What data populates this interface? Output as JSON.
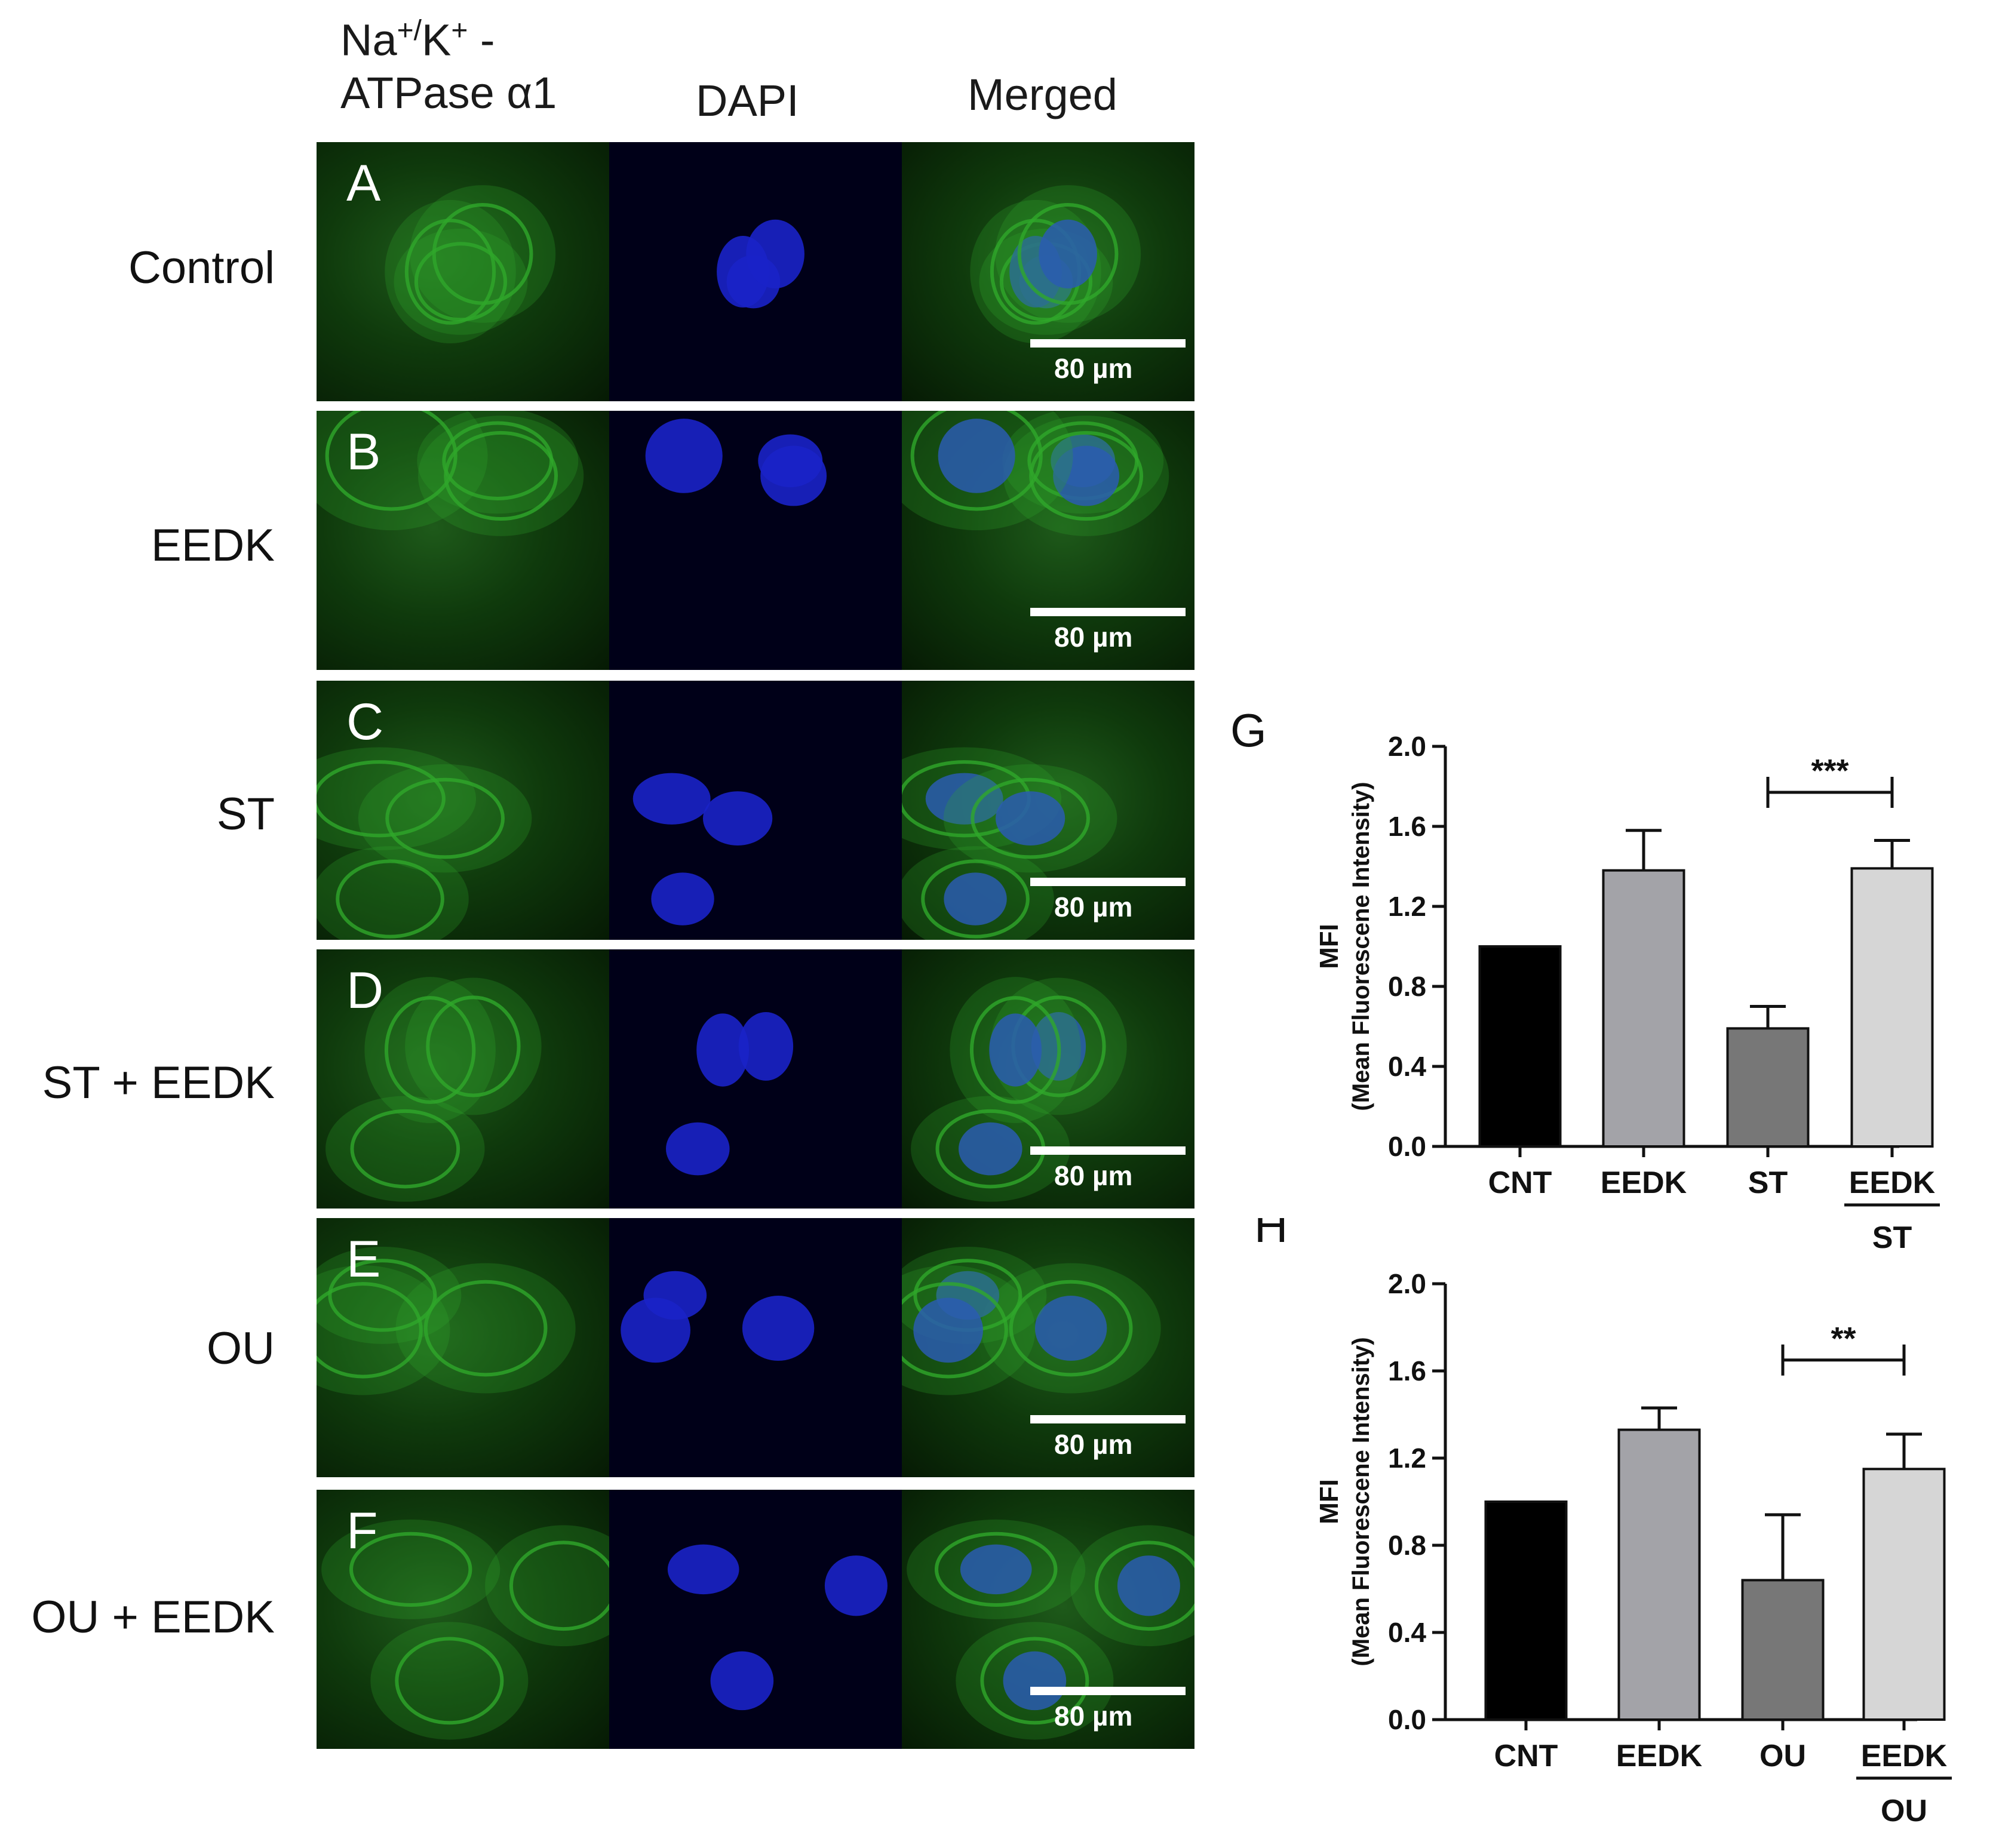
{
  "columns": {
    "col1_line1": "Na+/K+ -",
    "col1_line2": "ATPase α1",
    "col2": "DAPI",
    "col3": "Merged"
  },
  "rows": [
    {
      "letter": "A",
      "label": "Control",
      "scale": "80 µm"
    },
    {
      "letter": "B",
      "label": "EEDK",
      "scale": "80 µm"
    },
    {
      "letter": "C",
      "label": "ST",
      "scale": "80 µm"
    },
    {
      "letter": "D",
      "label": "ST + EEDK",
      "scale": "80 µm"
    },
    {
      "letter": "E",
      "label": "OU",
      "scale": "80 µm"
    },
    {
      "letter": "F",
      "label": "OU + EEDK",
      "scale": "80 µm"
    }
  ],
  "colors": {
    "green_stain": "#2fa82a",
    "blue_stain": "#1a22c8",
    "bar_cnt": "#000000",
    "bar_eedk": "#a3a3a8",
    "bar_treat": "#777777",
    "bar_combo": "#d6d6d6"
  },
  "chart_data": [
    {
      "panel_letter": "G",
      "type": "bar",
      "ylabel_line1": "MFI",
      "ylabel_line2": "(Mean Fluorescene Intensity)",
      "ylim": [
        0,
        2.0
      ],
      "yticks": [
        "0.0",
        "0.4",
        "0.8",
        "1.2",
        "1.6",
        "2.0"
      ],
      "categories": [
        "CNT",
        "EEDK",
        "ST",
        "EEDK"
      ],
      "category_sublabel": "ST",
      "values": [
        1.0,
        1.38,
        0.59,
        1.39
      ],
      "errors": [
        0.0,
        0.2,
        0.11,
        0.14
      ],
      "significance": "***"
    },
    {
      "panel_letter": "H",
      "type": "bar",
      "ylabel_line1": "MFI",
      "ylabel_line2": "(Mean Fluorescene Intensity)",
      "ylim": [
        0,
        2.0
      ],
      "yticks": [
        "0.0",
        "0.4",
        "0.8",
        "1.2",
        "1.6",
        "2.0"
      ],
      "categories": [
        "CNT",
        "EEDK",
        "OU",
        "EEDK"
      ],
      "category_sublabel": "OU",
      "values": [
        1.0,
        1.33,
        0.64,
        1.15
      ],
      "errors": [
        0.0,
        0.1,
        0.3,
        0.16
      ],
      "significance": "**"
    }
  ]
}
